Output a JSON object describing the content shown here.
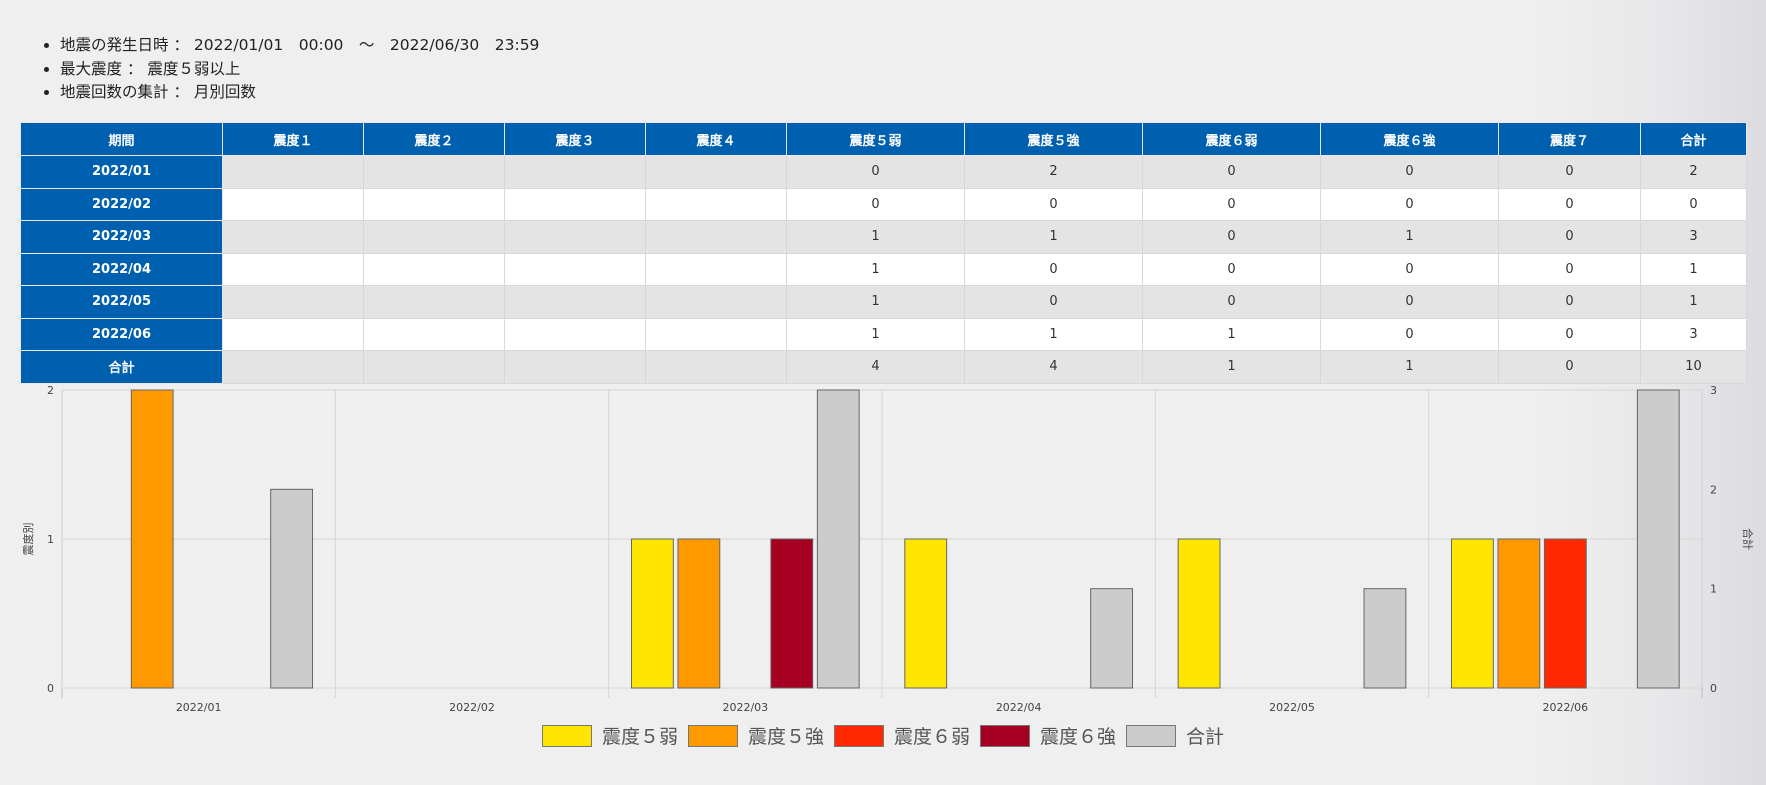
{
  "summary": {
    "items": [
      {
        "label": "地震の発生日時",
        "sep": "：",
        "value": "2022/01/01　00:00　～　2022/06/30　23:59"
      },
      {
        "label": "最大震度",
        "sep": "：",
        "value": "震度５弱以上"
      },
      {
        "label": "地震回数の集計",
        "sep": "：",
        "value": "月別回数"
      }
    ]
  },
  "table": {
    "headers": [
      "期間",
      "震度１",
      "震度２",
      "震度３",
      "震度４",
      "震度５弱",
      "震度５強",
      "震度６弱",
      "震度６強",
      "震度７",
      "合計"
    ],
    "rows": [
      [
        "2022/01",
        "",
        "",
        "",
        "",
        "0",
        "2",
        "0",
        "0",
        "0",
        "2"
      ],
      [
        "2022/02",
        "",
        "",
        "",
        "",
        "0",
        "0",
        "0",
        "0",
        "0",
        "0"
      ],
      [
        "2022/03",
        "",
        "",
        "",
        "",
        "1",
        "1",
        "0",
        "1",
        "0",
        "3"
      ],
      [
        "2022/04",
        "",
        "",
        "",
        "",
        "1",
        "0",
        "0",
        "0",
        "0",
        "1"
      ],
      [
        "2022/05",
        "",
        "",
        "",
        "",
        "1",
        "0",
        "0",
        "0",
        "0",
        "1"
      ],
      [
        "2022/06",
        "",
        "",
        "",
        "",
        "1",
        "1",
        "1",
        "0",
        "0",
        "3"
      ],
      [
        "合計",
        "",
        "",
        "",
        "",
        "4",
        "4",
        "1",
        "1",
        "0",
        "10"
      ]
    ]
  },
  "chart_data": {
    "type": "bar",
    "categories": [
      "2022/01",
      "2022/02",
      "2022/03",
      "2022/04",
      "2022/05",
      "2022/06"
    ],
    "ylabel": "震度別",
    "y2label": "合計",
    "ylim": [
      0,
      2
    ],
    "y2lim": [
      0,
      3
    ],
    "yticks": [
      0,
      1,
      2
    ],
    "y2ticks": [
      0,
      1,
      2,
      3
    ],
    "grid": true,
    "legend_position": "bottom",
    "series": [
      {
        "name": "震度５弱",
        "color": "#ffe600",
        "axis": "left",
        "values": [
          0,
          0,
          1,
          1,
          1,
          1
        ]
      },
      {
        "name": "震度５強",
        "color": "#ff9900",
        "axis": "left",
        "values": [
          2,
          0,
          1,
          0,
          0,
          1
        ]
      },
      {
        "name": "震度６弱",
        "color": "#ff2800",
        "axis": "left",
        "values": [
          0,
          0,
          0,
          0,
          0,
          1
        ]
      },
      {
        "name": "震度６強",
        "color": "#a50021",
        "axis": "left",
        "values": [
          0,
          0,
          1,
          0,
          0,
          0
        ]
      },
      {
        "name": "合計",
        "color": "#cccccc",
        "axis": "right",
        "values": [
          2,
          0,
          3,
          1,
          1,
          3
        ]
      }
    ]
  }
}
